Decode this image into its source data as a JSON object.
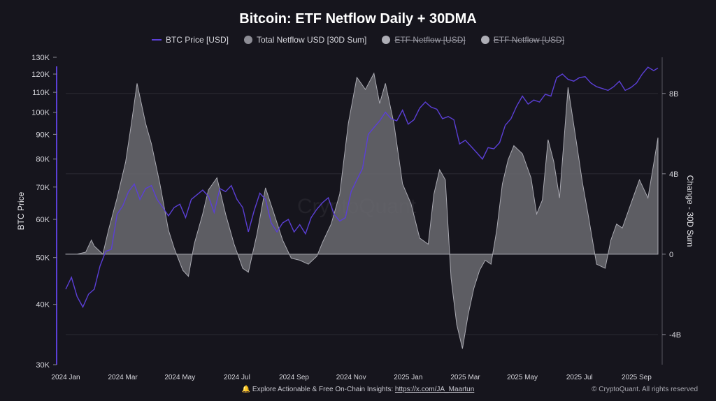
{
  "title": "Bitcoin: ETF Netflow Daily + 30DMA",
  "legend": [
    {
      "label": "BTC Price [USD]",
      "icon": "line-swatch-icon",
      "enabled": true
    },
    {
      "label": "Total Netflow USD [30D Sum]",
      "icon": "circle-swatch-icon",
      "enabled": true
    },
    {
      "label": "ETF Netflow [USD]",
      "icon": "circle-swatch-icon",
      "enabled": false
    },
    {
      "label": "ETF Netflow [USD]",
      "icon": "circle-swatch-icon",
      "enabled": false
    }
  ],
  "watermark": "CryptoQuant",
  "footer": {
    "icon": "bell-icon",
    "text": "Explore Actionable & Free On-Chain Insights:",
    "link": "https://x.com/JA_Maartun",
    "copyright": "© CryptoQuant. All rights reserved"
  },
  "colors": {
    "price": "#5b3fd6",
    "netflow_fill": "#6a6a70",
    "netflow_stroke": "#a9a9b1",
    "background": "#16151d"
  },
  "chart_data": {
    "type": "line+area",
    "title": "Bitcoin: ETF Netflow Daily + 30DMA",
    "x_tick_labels": [
      "2024 Jan",
      "2024 Mar",
      "2024 May",
      "2024 Jul",
      "2024 Sep",
      "2024 Nov",
      "2025 Jan",
      "2025 Mar",
      "2025 May",
      "2025 Jul",
      "2025 Sep"
    ],
    "x_start_month": 0,
    "x_end_month": 20.75,
    "y_left": {
      "label": "BTC Price",
      "scale": "log",
      "ylim": [
        30000,
        130000
      ],
      "ticks": [
        30000,
        40000,
        50000,
        60000,
        70000,
        80000,
        90000,
        100000,
        110000,
        120000,
        130000
      ],
      "tick_labels": [
        "30K",
        "40K",
        "50K",
        "60K",
        "70K",
        "80K",
        "90K",
        "100K",
        "110K",
        "120K",
        "130K"
      ]
    },
    "y_right": {
      "label": "Change - 30D Sum",
      "ylim": [
        -5500000000,
        9800000000
      ],
      "ticks": [
        -4000000000,
        0,
        4000000000,
        8000000000
      ],
      "tick_labels": [
        "-4B",
        "0",
        "4B",
        "8B"
      ]
    },
    "series": [
      {
        "name": "BTC Price [USD]",
        "axis": "left",
        "type": "line",
        "x_month": [
          0,
          0.2,
          0.4,
          0.6,
          0.8,
          1.0,
          1.2,
          1.4,
          1.6,
          1.8,
          2.0,
          2.2,
          2.4,
          2.6,
          2.8,
          3.0,
          3.2,
          3.4,
          3.6,
          3.8,
          4.0,
          4.2,
          4.4,
          4.6,
          4.8,
          5.0,
          5.2,
          5.4,
          5.6,
          5.8,
          6.0,
          6.2,
          6.4,
          6.6,
          6.8,
          7.0,
          7.2,
          7.4,
          7.6,
          7.8,
          8.0,
          8.2,
          8.4,
          8.6,
          8.8,
          9.0,
          9.2,
          9.4,
          9.6,
          9.8,
          10.0,
          10.2,
          10.4,
          10.6,
          10.8,
          11.0,
          11.2,
          11.4,
          11.6,
          11.8,
          12.0,
          12.2,
          12.4,
          12.6,
          12.8,
          13.0,
          13.2,
          13.4,
          13.6,
          13.8,
          14.0,
          14.2,
          14.4,
          14.6,
          14.8,
          15.0,
          15.2,
          15.4,
          15.6,
          15.8,
          16.0,
          16.2,
          16.4,
          16.6,
          16.8,
          17.0,
          17.2,
          17.4,
          17.6,
          17.8,
          18.0,
          18.2,
          18.4,
          18.6,
          18.8,
          19.0,
          19.2,
          19.4,
          19.6,
          19.8,
          20.0,
          20.2,
          20.4,
          20.6,
          20.75
        ],
        "values": [
          43000,
          45500,
          41500,
          39500,
          42000,
          43000,
          48000,
          51500,
          52000,
          61500,
          64000,
          68500,
          71000,
          66000,
          69500,
          70500,
          66000,
          63500,
          61000,
          63500,
          64500,
          60500,
          66000,
          67500,
          69000,
          67000,
          62000,
          69500,
          68500,
          70500,
          66000,
          63500,
          56500,
          62500,
          68000,
          66000,
          59000,
          56500,
          59000,
          60000,
          56500,
          58500,
          56000,
          60500,
          63000,
          65000,
          66500,
          61500,
          59500,
          60500,
          68500,
          72500,
          76500,
          90000,
          93000,
          96000,
          100000,
          97000,
          96000,
          101000,
          94500,
          96500,
          102000,
          105000,
          102500,
          101500,
          97000,
          98000,
          96500,
          86000,
          87500,
          85000,
          82500,
          80000,
          84500,
          84000,
          86500,
          94000,
          97000,
          103000,
          108000,
          104000,
          106000,
          105000,
          109000,
          108000,
          118000,
          120000,
          117000,
          116000,
          118000,
          118500,
          115000,
          113000,
          112000,
          111000,
          113000,
          116000,
          111000,
          112500,
          115000,
          120000,
          124000,
          122000,
          123500
        ]
      },
      {
        "name": "Total Netflow USD [30D Sum]",
        "axis": "right",
        "type": "area",
        "x_month": [
          0,
          0.4,
          0.7,
          0.9,
          1.0,
          1.3,
          1.5,
          1.8,
          2.1,
          2.3,
          2.5,
          2.8,
          3.0,
          3.3,
          3.6,
          3.8,
          4.1,
          4.3,
          4.5,
          4.8,
          5.0,
          5.3,
          5.6,
          5.9,
          6.2,
          6.4,
          6.7,
          7.0,
          7.3,
          7.6,
          7.9,
          8.2,
          8.5,
          8.8,
          9.0,
          9.3,
          9.6,
          9.9,
          10.2,
          10.5,
          10.8,
          11.0,
          11.2,
          11.5,
          11.8,
          12.1,
          12.4,
          12.7,
          12.9,
          13.1,
          13.3,
          13.5,
          13.7,
          13.9,
          14.1,
          14.3,
          14.5,
          14.7,
          14.9,
          15.1,
          15.3,
          15.5,
          15.7,
          16.0,
          16.3,
          16.5,
          16.7,
          16.9,
          17.1,
          17.3,
          17.6,
          17.9,
          18.1,
          18.3,
          18.6,
          18.9,
          19.1,
          19.3,
          19.5,
          19.8,
          20.1,
          20.4,
          20.6,
          20.75
        ],
        "values": [
          0,
          0,
          100000000,
          700000000,
          400000000,
          0,
          1200000000,
          2800000000,
          4600000000,
          6500000000,
          8500000000,
          6500000000,
          5500000000,
          3500000000,
          1200000000,
          300000000,
          -800000000,
          -1100000000,
          500000000,
          2000000000,
          3200000000,
          3800000000,
          2000000000,
          500000000,
          -700000000,
          -900000000,
          1000000000,
          3300000000,
          2000000000,
          700000000,
          -200000000,
          -300000000,
          -500000000,
          -100000000,
          600000000,
          1500000000,
          3000000000,
          6500000000,
          8800000000,
          8200000000,
          9000000000,
          7500000000,
          8500000000,
          6500000000,
          3500000000,
          2500000000,
          800000000,
          500000000,
          3000000000,
          4200000000,
          3700000000,
          -1200000000,
          -3500000000,
          -4700000000,
          -3000000000,
          -1700000000,
          -800000000,
          -300000000,
          -500000000,
          1200000000,
          3500000000,
          4700000000,
          5400000000,
          5000000000,
          3800000000,
          2000000000,
          2700000000,
          5700000000,
          4600000000,
          2800000000,
          8300000000,
          5500000000,
          3600000000,
          2000000000,
          -500000000,
          -700000000,
          700000000,
          1500000000,
          1300000000,
          2500000000,
          3700000000,
          2800000000,
          4500000000,
          5800000000
        ]
      }
    ]
  }
}
